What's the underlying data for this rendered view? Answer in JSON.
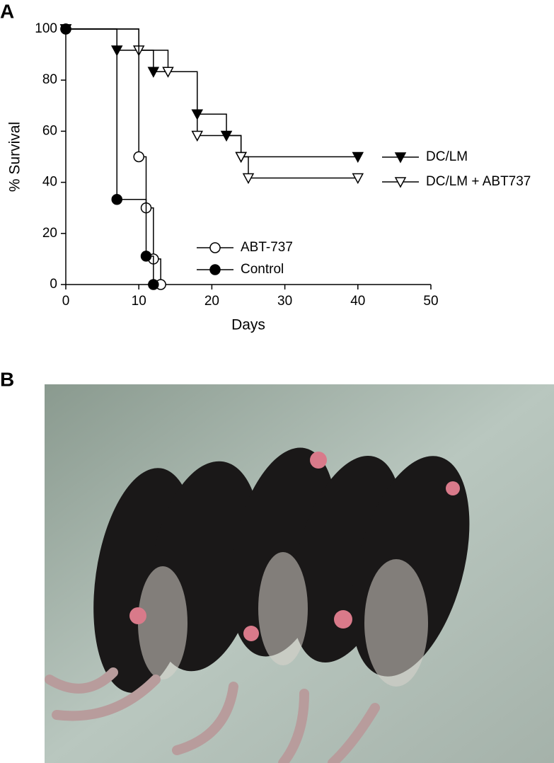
{
  "panel_labels": [
    "A",
    "B"
  ],
  "chart_data": {
    "type": "step",
    "xlabel": "Days",
    "ylabel": "% Survival",
    "xlim": [
      0,
      50
    ],
    "xticks": [
      0,
      10,
      20,
      30,
      40,
      50
    ],
    "ylim": [
      0,
      100
    ],
    "yticks": [
      0,
      20,
      40,
      60,
      80,
      100
    ],
    "series": [
      {
        "name": "DC/LM",
        "color": "#000000",
        "marker": "triangle-down",
        "filled": true,
        "x": [
          0,
          7,
          12,
          18,
          22,
          24,
          40
        ],
        "values": [
          100,
          91.7,
          83.3,
          66.7,
          58.3,
          50,
          50
        ]
      },
      {
        "name": "DC/LM + ABT737",
        "color": "#000000",
        "marker": "triangle-down",
        "filled": false,
        "x": [
          0,
          10,
          14,
          18,
          24,
          25,
          40
        ],
        "values": [
          100,
          91.7,
          83.3,
          58.3,
          50,
          41.7,
          41.7
        ]
      },
      {
        "name": "ABT-737",
        "color": "#000000",
        "marker": "circle",
        "filled": false,
        "x": [
          0,
          10,
          11,
          12,
          13
        ],
        "values": [
          100,
          50,
          30,
          10,
          0
        ]
      },
      {
        "name": "Control",
        "color": "#000000",
        "marker": "circle",
        "filled": true,
        "x": [
          0,
          7,
          11,
          12
        ],
        "values": [
          100,
          33.3,
          11.1,
          0
        ]
      }
    ]
  }
}
